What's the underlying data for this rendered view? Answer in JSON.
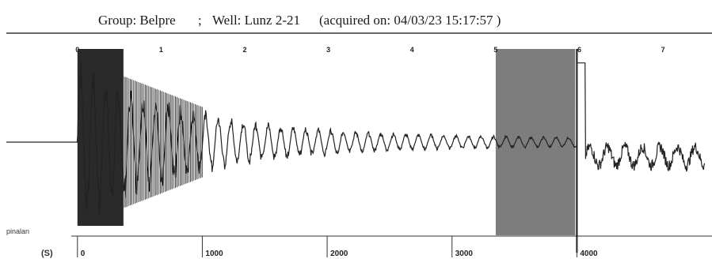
{
  "header": {
    "group": "Group: Belpre",
    "separator": ";",
    "well": "Well: Lunz 2-21",
    "acquired": "(acquired on: 04/03/23 15:17:57 )"
  },
  "side_labels": {
    "left_bottom": "pinalan",
    "left_axis": "(S)"
  },
  "chart_data": {
    "type": "line",
    "title": "",
    "top_axis": {
      "ticks": [
        {
          "value": 0,
          "label": "0"
        },
        {
          "value": 1,
          "label": "1"
        },
        {
          "value": 2,
          "label": "2"
        },
        {
          "value": 3,
          "label": "3"
        },
        {
          "value": 4,
          "label": "4"
        },
        {
          "value": 5,
          "label": "5"
        },
        {
          "value": 6,
          "label": "6"
        },
        {
          "value": 7,
          "label": "7"
        }
      ]
    },
    "bottom_axis": {
      "ticks": [
        {
          "value": 0,
          "label": "0"
        },
        {
          "value": 1000,
          "label": "1000"
        },
        {
          "value": 2000,
          "label": "2000"
        },
        {
          "value": 3000,
          "label": "3000"
        },
        {
          "value": 4000,
          "label": "4000"
        }
      ]
    },
    "x_range": [
      -0.85,
      7.5
    ],
    "y_range": [
      -1,
      1
    ],
    "baseline": 0,
    "pre_trigger_end": 0,
    "dense_region": [
      0,
      1.5
    ],
    "noise_box": [
      5.0,
      5.95
    ],
    "marker_line": 5.97,
    "trace_color": "#222222",
    "noise_color": "#666666"
  }
}
